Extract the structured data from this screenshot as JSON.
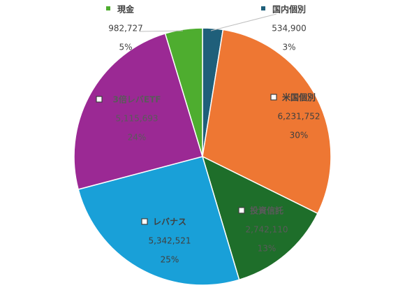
{
  "chart_data": {
    "type": "pie",
    "title": "",
    "slices": [
      {
        "name": "国内個別",
        "value": 534900,
        "percent": "3%",
        "value_label": "534,900",
        "color": "#1f5f7a"
      },
      {
        "name": "米国個別",
        "value": 6231752,
        "percent": "30%",
        "value_label": "6,231,752",
        "color": "#ee7733"
      },
      {
        "name": "投資信託",
        "value": 2742110,
        "percent": "13%",
        "value_label": "2,742,110",
        "color": "#1e6e2a"
      },
      {
        "name": "レバナス",
        "value": 5342521,
        "percent": "25%",
        "value_label": "5,342,521",
        "color": "#19a0d8"
      },
      {
        "name": "3倍レバETF",
        "value": 5115693,
        "percent": "24%",
        "value_label": "5,115,693",
        "color": "#9b2994"
      },
      {
        "name": "現金",
        "value": 982727,
        "percent": "5%",
        "value_label": "982,727",
        "color": "#4ead2f"
      }
    ]
  }
}
